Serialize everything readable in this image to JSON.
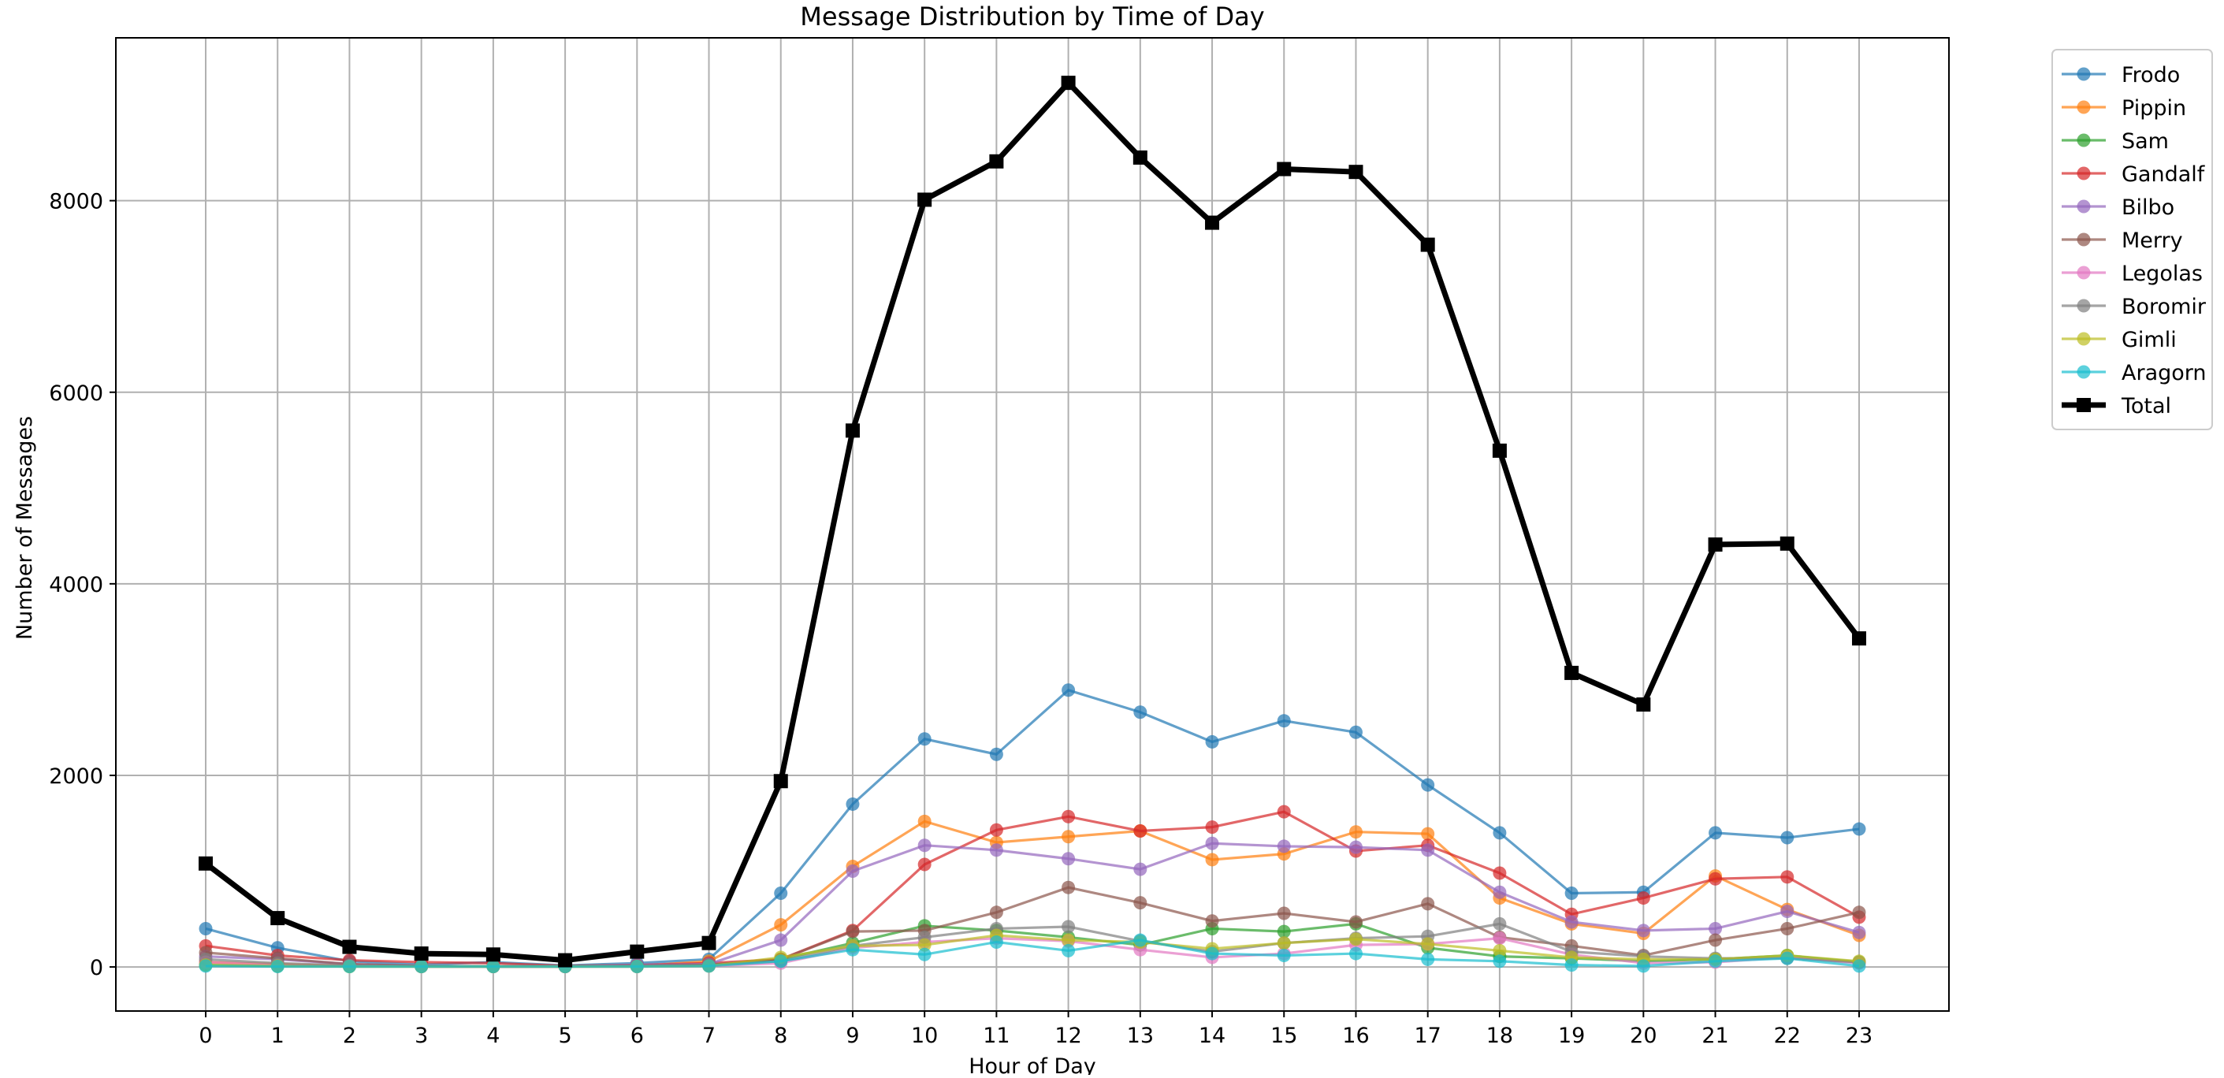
{
  "chart_data": {
    "type": "line",
    "title": "Message Distribution by Time of Day",
    "xlabel": "Hour of Day",
    "ylabel": "Number of Messages",
    "x": [
      0,
      1,
      2,
      3,
      4,
      5,
      6,
      7,
      8,
      9,
      10,
      11,
      12,
      13,
      14,
      15,
      16,
      17,
      18,
      19,
      20,
      21,
      22,
      23
    ],
    "xlim": [
      -1.25,
      24.25
    ],
    "ylim": [
      -460,
      9700
    ],
    "yticks": [
      0,
      2000,
      4000,
      6000,
      8000
    ],
    "grid": true,
    "legend_position": "outside-top-right",
    "series": [
      {
        "name": "Frodo",
        "color": "#1f77b4",
        "marker": "circle",
        "values": [
          400,
          200,
          60,
          25,
          50,
          15,
          40,
          80,
          770,
          1700,
          2380,
          2220,
          2890,
          2660,
          2350,
          2570,
          2450,
          1900,
          1400,
          770,
          780,
          1400,
          1350,
          1440
        ]
      },
      {
        "name": "Pippin",
        "color": "#ff7f0e",
        "marker": "circle",
        "values": [
          50,
          30,
          10,
          5,
          5,
          5,
          10,
          60,
          440,
          1050,
          1520,
          1300,
          1360,
          1420,
          1120,
          1180,
          1410,
          1390,
          720,
          450,
          350,
          950,
          600,
          330
        ]
      },
      {
        "name": "Sam",
        "color": "#2ca02c",
        "marker": "circle",
        "values": [
          20,
          10,
          5,
          5,
          5,
          5,
          5,
          20,
          80,
          250,
          430,
          380,
          310,
          230,
          400,
          370,
          450,
          200,
          110,
          90,
          60,
          80,
          120,
          50
        ]
      },
      {
        "name": "Gandalf",
        "color": "#d62728",
        "marker": "circle",
        "values": [
          220,
          120,
          70,
          50,
          40,
          10,
          20,
          40,
          80,
          380,
          1070,
          1430,
          1570,
          1420,
          1460,
          1620,
          1210,
          1270,
          980,
          550,
          720,
          920,
          940,
          520
        ]
      },
      {
        "name": "Bilbo",
        "color": "#9467bd",
        "marker": "circle",
        "values": [
          110,
          80,
          30,
          10,
          5,
          5,
          20,
          30,
          280,
          1000,
          1270,
          1220,
          1130,
          1020,
          1290,
          1260,
          1250,
          1220,
          780,
          470,
          380,
          400,
          580,
          360
        ]
      },
      {
        "name": "Merry",
        "color": "#8c564b",
        "marker": "circle",
        "values": [
          150,
          90,
          30,
          10,
          5,
          5,
          10,
          20,
          80,
          370,
          380,
          570,
          830,
          670,
          480,
          560,
          470,
          660,
          310,
          220,
          120,
          280,
          400,
          570
        ]
      },
      {
        "name": "Legolas",
        "color": "#e377c2",
        "marker": "circle",
        "values": [
          50,
          20,
          10,
          5,
          5,
          5,
          5,
          10,
          40,
          200,
          260,
          300,
          270,
          180,
          100,
          140,
          230,
          240,
          300,
          130,
          40,
          50,
          100,
          40
        ]
      },
      {
        "name": "Boromir",
        "color": "#7f7f7f",
        "marker": "circle",
        "values": [
          80,
          40,
          15,
          5,
          5,
          5,
          10,
          20,
          60,
          220,
          310,
          400,
          420,
          270,
          160,
          250,
          300,
          320,
          450,
          160,
          110,
          90,
          90,
          50
        ]
      },
      {
        "name": "Gimli",
        "color": "#bcbd22",
        "marker": "circle",
        "values": [
          20,
          10,
          5,
          5,
          5,
          5,
          5,
          10,
          100,
          220,
          230,
          330,
          280,
          260,
          190,
          250,
          290,
          240,
          170,
          100,
          80,
          80,
          120,
          60
        ]
      },
      {
        "name": "Aragorn",
        "color": "#17becf",
        "marker": "circle",
        "values": [
          10,
          5,
          5,
          5,
          5,
          5,
          5,
          10,
          60,
          180,
          130,
          260,
          170,
          280,
          140,
          120,
          140,
          80,
          60,
          20,
          10,
          60,
          90,
          10
        ]
      },
      {
        "name": "Total",
        "color": "#000000",
        "marker": "square",
        "bold": true,
        "values": [
          1080,
          510,
          210,
          140,
          130,
          70,
          160,
          250,
          1940,
          5600,
          8010,
          8410,
          9230,
          8450,
          7770,
          8330,
          8300,
          7540,
          5390,
          3070,
          2740,
          4410,
          4420,
          3430
        ]
      }
    ]
  }
}
